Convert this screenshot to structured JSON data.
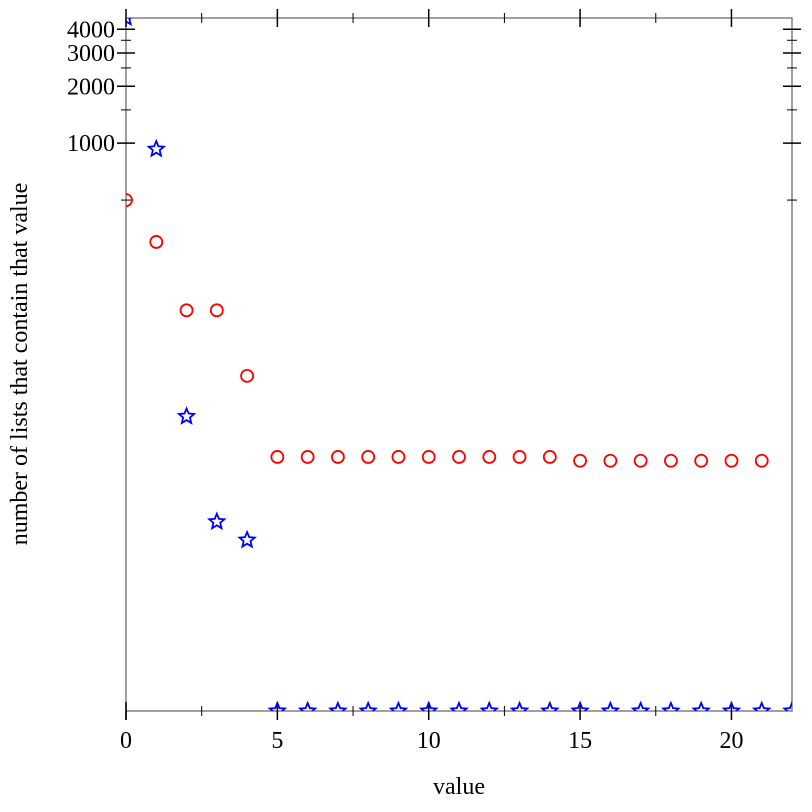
{
  "chart_data": {
    "type": "scatter",
    "title": "",
    "xlabel": "value",
    "ylabel": "number of lists that contain that value",
    "y_scale": "log(y+1)",
    "xlim": [
      0,
      22
    ],
    "ylim": [
      0,
      4590
    ],
    "x_ticks": [
      {
        "value": 0,
        "label": "0"
      },
      {
        "value": 5,
        "label": "5"
      },
      {
        "value": 10,
        "label": "10"
      },
      {
        "value": 15,
        "label": "15"
      },
      {
        "value": 20,
        "label": "20"
      }
    ],
    "x_minor_ticks": [
      2.5,
      7.5,
      12.5,
      17.5
    ],
    "y_ticks": [
      {
        "value": 1000,
        "label": "1000"
      },
      {
        "value": 2000,
        "label": "2000"
      },
      {
        "value": 3000,
        "label": "3000"
      },
      {
        "value": 4000,
        "label": "4000"
      }
    ],
    "y_minor_ticks": [
      500,
      1500,
      2500,
      3500
    ],
    "grid": false,
    "legend": "none",
    "series": [
      {
        "name": "circles",
        "marker": "circle",
        "color": "#ff0000",
        "x": [
          0,
          1,
          2,
          3,
          4,
          5,
          6,
          7,
          8,
          9,
          10,
          11,
          12,
          13,
          14,
          15,
          16,
          17,
          18,
          19,
          20,
          21
        ],
        "y": [
          500,
          300,
          130,
          130,
          58,
          21,
          21,
          21,
          21,
          21,
          21,
          21,
          21,
          21,
          21,
          20,
          20,
          20,
          20,
          20,
          20,
          20
        ]
      },
      {
        "name": "stars",
        "marker": "star",
        "color": "#0000ff",
        "x": [
          0,
          1,
          2,
          3,
          4,
          5,
          6,
          7,
          8,
          9,
          10,
          11,
          12,
          13,
          14,
          15,
          16,
          17,
          18,
          19,
          20,
          21,
          22
        ],
        "y": [
          4600,
          930,
          35,
          9,
          7,
          0,
          0,
          0,
          0,
          0,
          0,
          0,
          0,
          0,
          0,
          0,
          0,
          0,
          0,
          0,
          0,
          0,
          0
        ]
      }
    ]
  }
}
